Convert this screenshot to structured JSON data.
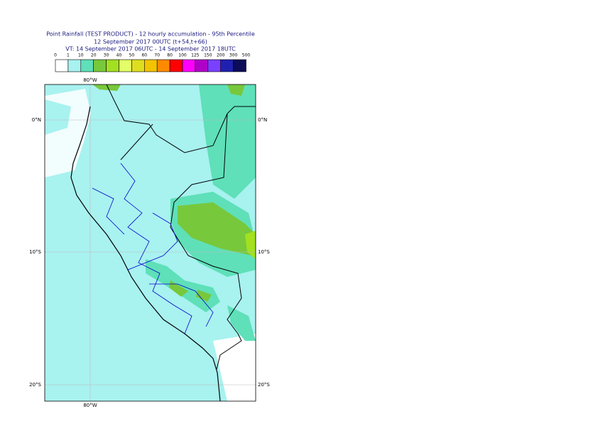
{
  "header": {
    "title": "Point Rainfall (TEST PRODUCT) - 12 hourly accumulation - 95th Percentile",
    "base_time": "12 September 2017 00UTC (t+54,t+66)",
    "valid_time": "VT: 14 September 2017 06UTC - 14 September 2017 18UTC"
  },
  "legend": {
    "thresholds": [
      0,
      1,
      10,
      20,
      30,
      40,
      50,
      60,
      70,
      80,
      100,
      125,
      150,
      200,
      300,
      500
    ],
    "colors": [
      "#ffffff",
      "#a8f2f0",
      "#5fe0b8",
      "#78c83c",
      "#a2e020",
      "#e2ff68",
      "#dede20",
      "#f2c400",
      "#ff8a00",
      "#ff0000",
      "#ff00ff",
      "#b000c8",
      "#7a40ff",
      "#2020b0",
      "#0c0c58"
    ]
  },
  "map": {
    "lon_label_top": "80°W",
    "lon_label_bottom": "80°W",
    "lat_labels_left": [
      "0°N",
      "10°S",
      "20°S"
    ],
    "lat_labels_right": [
      "0°N",
      "10°S",
      "20°S"
    ]
  }
}
